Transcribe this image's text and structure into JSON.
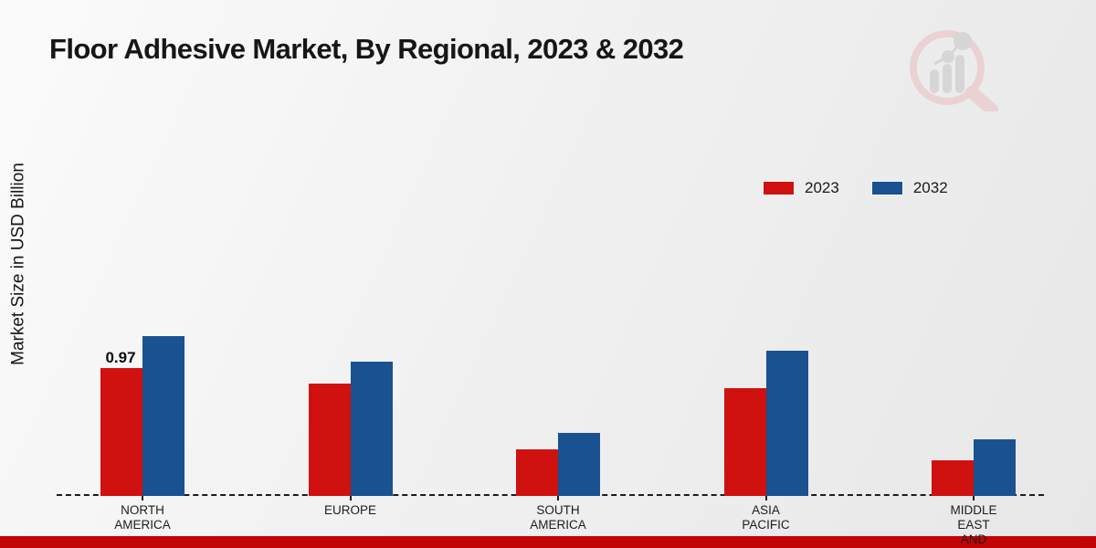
{
  "title": "Floor Adhesive Market, By Regional, 2023 & 2032",
  "y_axis_label": "Market Size in USD Billion",
  "legend": {
    "items": [
      {
        "label": "2023",
        "color": "#cf1110"
      },
      {
        "label": "2032",
        "color": "#1a5191"
      }
    ]
  },
  "footer_bar_color": "#c10505",
  "watermark_icon": "magnifier-bar-chart-logo",
  "chart_data": {
    "type": "bar",
    "title": "Floor Adhesive Market, By Regional, 2023 & 2032",
    "xlabel": "",
    "ylabel": "Market Size in USD Billion",
    "unit": "USD Billion",
    "categories": [
      "NORTH AMERICA",
      "EUROPE",
      "SOUTH AMERICA",
      "ASIA PACIFIC",
      "MIDDLE EAST AND"
    ],
    "category_label_lines": [
      [
        "NORTH",
        "AMERICA"
      ],
      [
        "EUROPE"
      ],
      [
        "SOUTH",
        "AMERICA"
      ],
      [
        "ASIA",
        "PACIFIC"
      ],
      [
        "MIDDLE",
        "EAST",
        "AND"
      ]
    ],
    "series": [
      {
        "name": "2023",
        "color": "#cf1110",
        "values": [
          0.97,
          0.85,
          0.35,
          0.82,
          0.27
        ]
      },
      {
        "name": "2032",
        "color": "#1a5191",
        "values": [
          1.21,
          1.02,
          0.48,
          1.1,
          0.43
        ]
      }
    ],
    "annotations": [
      {
        "series_index": 0,
        "category_index": 0,
        "text": "0.97"
      }
    ],
    "ylim": [
      0,
      1.35
    ],
    "grid": false,
    "y_axis_ticks_visible": false,
    "baseline_style": "dashed",
    "legend_position": "upper-right"
  }
}
